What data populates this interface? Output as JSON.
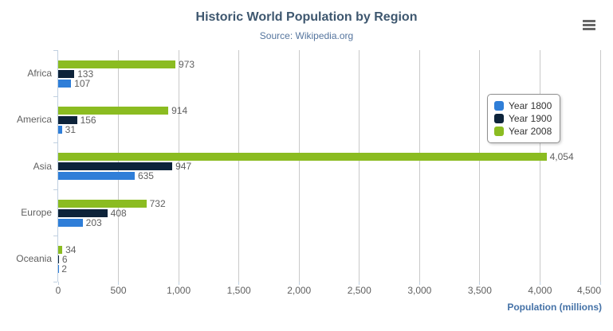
{
  "chart_data": {
    "type": "bar",
    "orientation": "horizontal",
    "title": "Historic World Population by Region",
    "subtitle": "Source: Wikipedia.org",
    "categories": [
      "Africa",
      "America",
      "Asia",
      "Europe",
      "Oceania"
    ],
    "series": [
      {
        "name": "Year 1800",
        "color": "#2f7ed8",
        "values": [
          107,
          31,
          635,
          203,
          2
        ]
      },
      {
        "name": "Year 1900",
        "color": "#0d233a",
        "values": [
          133,
          156,
          947,
          408,
          6
        ]
      },
      {
        "name": "Year 2008",
        "color": "#8bbc21",
        "values": [
          973,
          914,
          4054,
          732,
          34
        ]
      }
    ],
    "bar_display_order_top_to_bottom": [
      "Year 2008",
      "Year 1900",
      "Year 1800"
    ],
    "xlabel": "Population (millions)",
    "ylabel": "",
    "xlim": [
      0,
      4500
    ],
    "x_tick_interval": 500,
    "x_tick_labels": [
      "0",
      "500",
      "1,000",
      "1,500",
      "2,000",
      "2,500",
      "3,000",
      "3,500",
      "4,000",
      "4,500"
    ],
    "grid": true,
    "data_labels": true,
    "legend_position": "inside-right"
  },
  "header": {
    "menu_icon": "hamburger-menu-icon"
  },
  "colors": {
    "title": "#3E576F",
    "subtitle": "#55759e",
    "axis_title": "#4572A7",
    "tick_label": "#606060",
    "data_label": "#606060",
    "grid_line": "#C9C9C9",
    "axis_line": "#C0D0E0",
    "legend_border": "#909090",
    "legend_text": "#333333",
    "menu_icon": "#666666",
    "background": "#ffffff"
  }
}
